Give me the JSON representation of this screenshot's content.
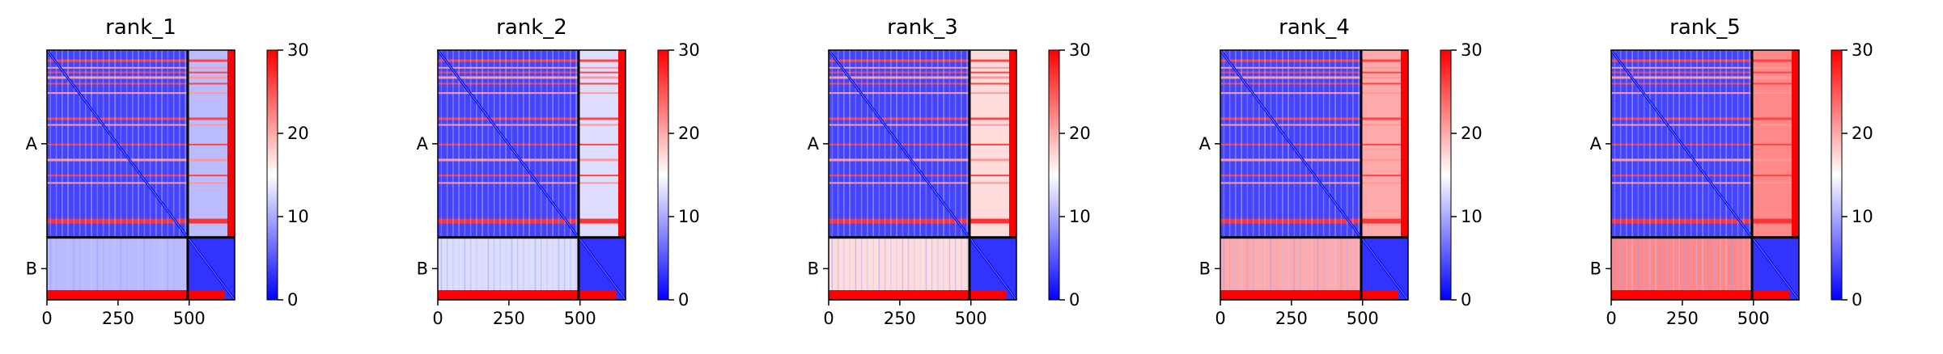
{
  "chart_data": [
    {
      "type": "heatmap",
      "title": "rank_1",
      "x_ticks": [
        0,
        250,
        500
      ],
      "y_tick_labels": [
        "A",
        "B"
      ],
      "colorbar": {
        "min": 0,
        "max": 30,
        "ticks": [
          0,
          10,
          20,
          30
        ]
      },
      "colormap": [
        "#0000ff",
        "#ffffff",
        "#ff0000"
      ],
      "chain_boundary": 495,
      "length": 660,
      "b_region_level": 11
    },
    {
      "type": "heatmap",
      "title": "rank_2",
      "x_ticks": [
        0,
        250,
        500
      ],
      "y_tick_labels": [
        "A",
        "B"
      ],
      "colorbar": {
        "min": 0,
        "max": 30,
        "ticks": [
          0,
          10,
          20,
          30
        ]
      },
      "colormap": [
        "#0000ff",
        "#ffffff",
        "#ff0000"
      ],
      "chain_boundary": 495,
      "length": 660,
      "b_region_level": 13
    },
    {
      "type": "heatmap",
      "title": "rank_3",
      "x_ticks": [
        0,
        250,
        500
      ],
      "y_tick_labels": [
        "A",
        "B"
      ],
      "colorbar": {
        "min": 0,
        "max": 30,
        "ticks": [
          0,
          10,
          20,
          30
        ]
      },
      "colormap": [
        "#0000ff",
        "#ffffff",
        "#ff0000"
      ],
      "chain_boundary": 495,
      "length": 660,
      "b_region_level": 17
    },
    {
      "type": "heatmap",
      "title": "rank_4",
      "x_ticks": [
        0,
        250,
        500
      ],
      "y_tick_labels": [
        "A",
        "B"
      ],
      "colorbar": {
        "min": 0,
        "max": 30,
        "ticks": [
          0,
          10,
          20,
          30
        ]
      },
      "colormap": [
        "#0000ff",
        "#ffffff",
        "#ff0000"
      ],
      "chain_boundary": 495,
      "length": 660,
      "b_region_level": 20
    },
    {
      "type": "heatmap",
      "title": "rank_5",
      "x_ticks": [
        0,
        250,
        500
      ],
      "y_tick_labels": [
        "A",
        "B"
      ],
      "colorbar": {
        "min": 0,
        "max": 30,
        "ticks": [
          0,
          10,
          20,
          30
        ]
      },
      "colormap": [
        "#0000ff",
        "#ffffff",
        "#ff0000"
      ],
      "chain_boundary": 495,
      "length": 660,
      "b_region_level": 22
    }
  ]
}
